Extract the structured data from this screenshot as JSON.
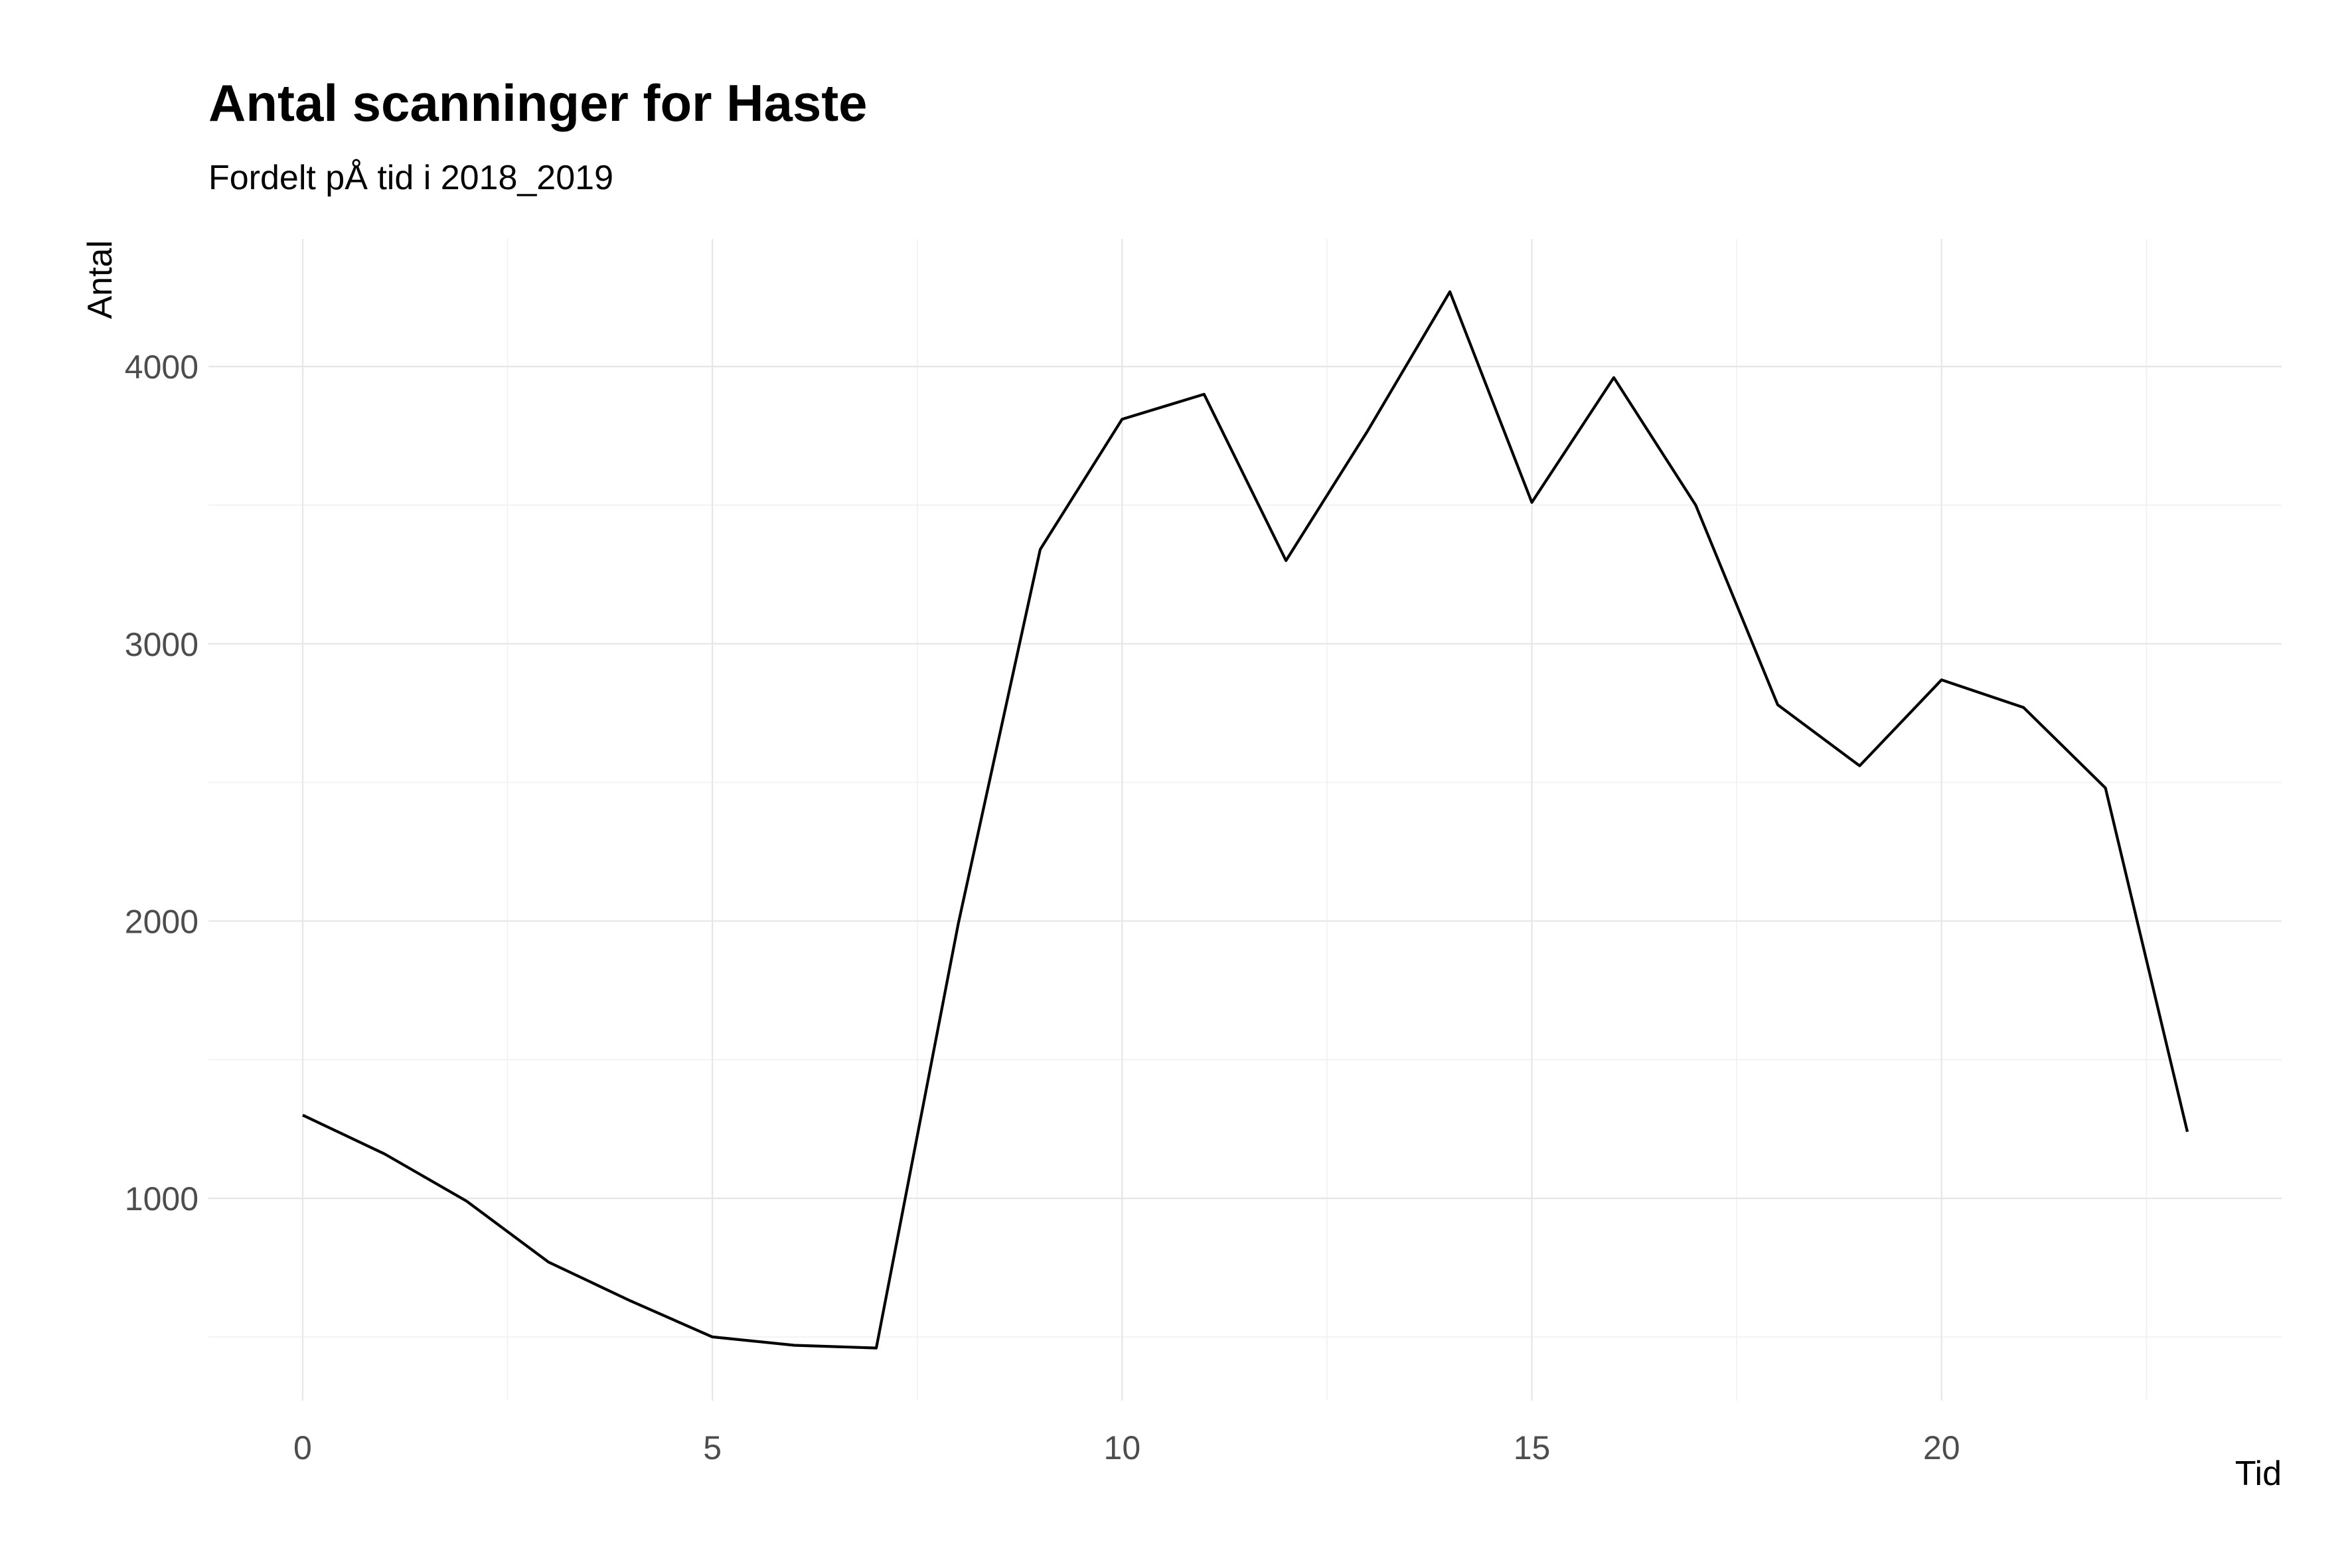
{
  "chart_data": {
    "type": "line",
    "title": "Antal scanninger for Haste",
    "subtitle": "Fordelt pÅ tid i 2018_2019",
    "xlabel": "Tid",
    "ylabel": "Antal",
    "xlim": [
      -1.15,
      24.15
    ],
    "ylim": [
      270,
      4460
    ],
    "x_ticks": [
      0,
      5,
      10,
      15,
      20
    ],
    "y_ticks": [
      1000,
      2000,
      3000,
      4000
    ],
    "grid": true,
    "legend": "none",
    "line_color": "#000000",
    "series": [
      {
        "x": [
          0,
          1,
          2,
          3,
          4,
          5,
          6,
          7,
          8,
          9,
          10,
          11,
          12,
          13,
          14,
          15,
          16,
          17,
          18,
          19,
          20,
          21,
          22,
          23
        ],
        "values": [
          1300,
          1160,
          990,
          770,
          630,
          500,
          470,
          460,
          1990,
          3340,
          3810,
          3900,
          3300,
          3770,
          4270,
          3510,
          3960,
          3500,
          2780,
          2560,
          2870,
          2770,
          2480,
          1240
        ]
      }
    ]
  }
}
